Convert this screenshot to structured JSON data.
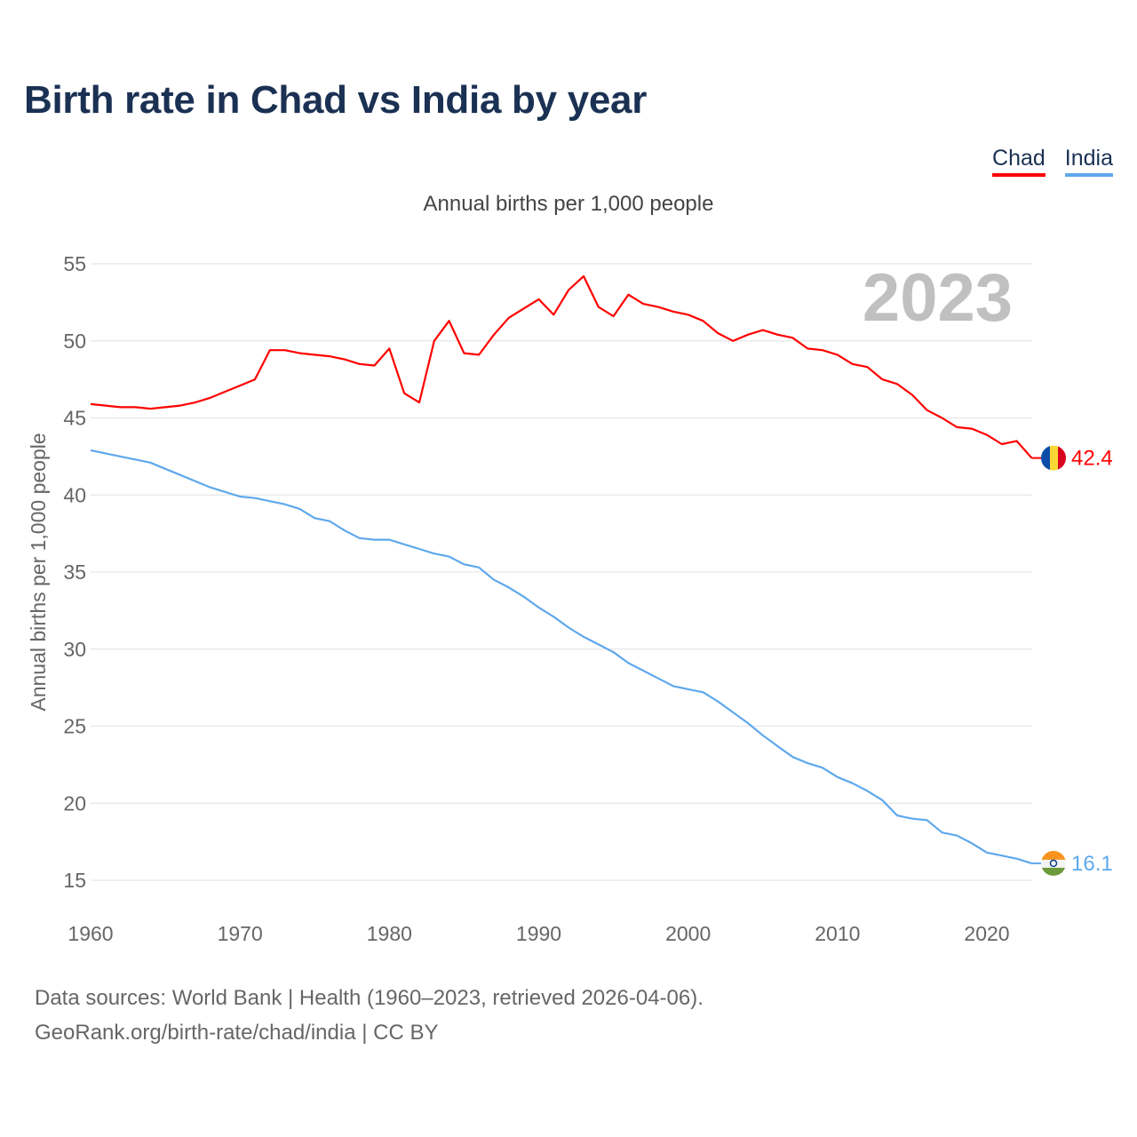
{
  "title": "Birth rate in Chad vs India by year",
  "subtitle": "Annual births per 1,000 people",
  "year_watermark": "2023",
  "footer": {
    "line1": "Data sources: World Bank | Health (1960–2023, retrieved 2026-04-06).",
    "line2": "GeoRank.org/birth-rate/chad/india | CC BY"
  },
  "chart_data": {
    "type": "line",
    "title": "Birth rate in Chad vs India by year",
    "xlabel": "",
    "ylabel": "Annual births per 1,000 people",
    "xlim": [
      1960,
      2023
    ],
    "ylim": [
      15,
      55
    ],
    "grid": true,
    "legend_position": "top-right",
    "x_ticks": [
      1960,
      1970,
      1980,
      1990,
      2000,
      2010,
      2020
    ],
    "y_ticks": [
      15,
      20,
      25,
      30,
      35,
      40,
      45,
      50,
      55
    ],
    "x": [
      1960,
      1961,
      1962,
      1963,
      1964,
      1965,
      1966,
      1967,
      1968,
      1969,
      1970,
      1971,
      1972,
      1973,
      1974,
      1975,
      1976,
      1977,
      1978,
      1979,
      1980,
      1981,
      1982,
      1983,
      1984,
      1985,
      1986,
      1987,
      1988,
      1989,
      1990,
      1991,
      1992,
      1993,
      1994,
      1995,
      1996,
      1997,
      1998,
      1999,
      2000,
      2001,
      2002,
      2003,
      2004,
      2005,
      2006,
      2007,
      2008,
      2009,
      2010,
      2011,
      2012,
      2013,
      2014,
      2015,
      2016,
      2017,
      2018,
      2019,
      2020,
      2021,
      2022,
      2023
    ],
    "series": [
      {
        "name": "Chad",
        "color": "#ff0000",
        "end_label": "42.4",
        "values": [
          45.9,
          45.8,
          45.7,
          45.7,
          45.6,
          45.7,
          45.8,
          46.0,
          46.3,
          46.7,
          47.1,
          47.5,
          49.4,
          49.4,
          49.2,
          49.1,
          49.0,
          48.8,
          48.5,
          48.4,
          49.5,
          46.6,
          46.0,
          50.0,
          51.3,
          49.2,
          49.1,
          50.4,
          51.5,
          52.1,
          52.7,
          51.7,
          53.3,
          54.2,
          52.2,
          51.6,
          53.0,
          52.4,
          52.2,
          51.9,
          51.7,
          51.3,
          50.5,
          50.0,
          50.4,
          50.7,
          50.4,
          50.2,
          49.5,
          49.4,
          49.1,
          48.5,
          48.3,
          47.5,
          47.2,
          46.5,
          45.5,
          45.0,
          44.4,
          44.3,
          43.9,
          43.3,
          43.5,
          42.4
        ]
      },
      {
        "name": "India",
        "color": "#5fa8ec",
        "end_label": "16.1",
        "values": [
          42.9,
          42.7,
          42.5,
          42.3,
          42.1,
          41.7,
          41.3,
          40.9,
          40.5,
          40.2,
          39.9,
          39.8,
          39.6,
          39.4,
          39.1,
          38.5,
          38.3,
          37.7,
          37.2,
          37.1,
          37.1,
          36.8,
          36.5,
          36.2,
          36.0,
          35.5,
          35.3,
          34.5,
          34.0,
          33.4,
          32.7,
          32.1,
          31.4,
          30.8,
          30.3,
          29.8,
          29.1,
          28.6,
          28.1,
          27.6,
          27.4,
          27.2,
          26.6,
          25.9,
          25.2,
          24.4,
          23.7,
          23.0,
          22.6,
          22.3,
          21.7,
          21.3,
          20.8,
          20.2,
          19.2,
          19.0,
          18.9,
          18.1,
          17.9,
          17.4,
          16.8,
          16.6,
          16.4,
          16.1
        ]
      }
    ]
  }
}
